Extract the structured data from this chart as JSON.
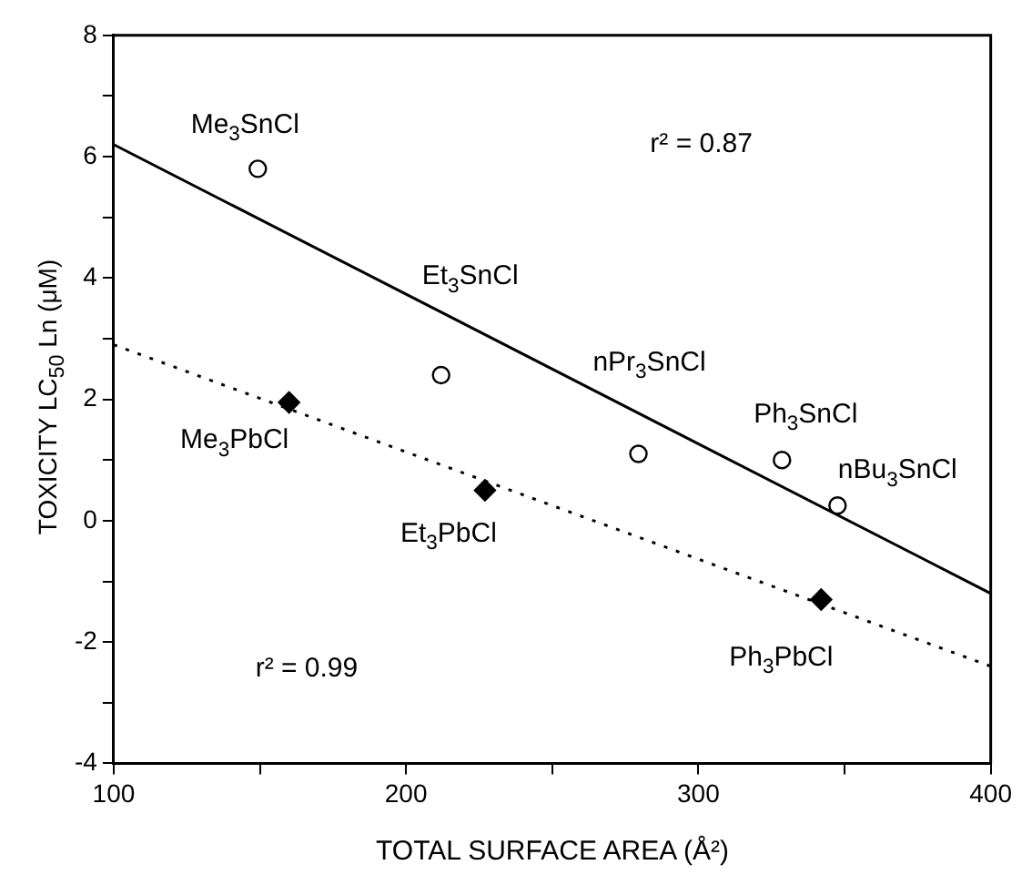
{
  "chart_data": {
    "type": "scatter",
    "xlabel": "TOTAL SURFACE AREA (Å²)",
    "ylabel": "TOXICITY LC$_{50}$ Ln (μM)",
    "xlim": [
      100,
      400
    ],
    "ylim": [
      -4,
      8
    ],
    "xticks": [
      100,
      {
        "value": 150,
        "label": null
      },
      200,
      {
        "value": 250,
        "label": null
      },
      300,
      {
        "value": 350,
        "label": null
      },
      400
    ],
    "yticks": [
      -4,
      {
        "value": -3,
        "label": null
      },
      -2,
      {
        "value": -1,
        "label": null
      },
      0,
      {
        "value": 1,
        "label": null
      },
      2,
      {
        "value": 3,
        "label": null
      },
      4,
      {
        "value": 5,
        "label": null
      },
      6,
      {
        "value": 7,
        "label": null
      },
      8
    ],
    "grid": false,
    "series": [
      {
        "type": "scatter",
        "marker": "circle",
        "color": "#000000",
        "x": [
          149.3,
          212,
          279.5,
          328.6,
          347.6
        ],
        "values": [
          5.8,
          2.4,
          1.1,
          1.0,
          0.25
        ]
      },
      {
        "type": "scatter",
        "marker": "diamond",
        "color": "#000000",
        "x": [
          160,
          227,
          342
        ],
        "values": [
          1.95,
          0.5,
          -1.3
        ]
      },
      {
        "type": "line",
        "line_style": "solid",
        "marker": "none",
        "color": "#000000",
        "x": [
          100,
          400
        ],
        "values": [
          6.2,
          -1.2
        ]
      },
      {
        "type": "line",
        "line_style": "dotted",
        "marker": "none",
        "color": "#000000",
        "x": [
          100,
          400
        ],
        "values": [
          2.9,
          -2.4
        ]
      }
    ],
    "annotations": [
      {
        "text": "Me$_{3}$SnCl",
        "x": 149.3,
        "y": 5.8
      },
      {
        "text": "Et$_{3}$SnCl",
        "x": 212,
        "y": 2.4
      },
      {
        "text": "nPr$_{3}$SnCl",
        "x": 279.5,
        "y": 1.1
      },
      {
        "text": "Ph$_{3}$SnCl",
        "x": 328.6,
        "y": 1.0
      },
      {
        "text": "nBu$_{3}$SnCl",
        "x": 347.6,
        "y": 0.25
      },
      {
        "text": "Me$_{3}$PbCl",
        "x": 160,
        "y": 1.95
      },
      {
        "text": "Et$_{3}$PbCl",
        "x": 227,
        "y": 0.5
      },
      {
        "text": "Ph$_{3}$PbCl",
        "x": 342,
        "y": -1.3
      },
      "r² = 0.87",
      "r² = 0.99"
    ]
  }
}
